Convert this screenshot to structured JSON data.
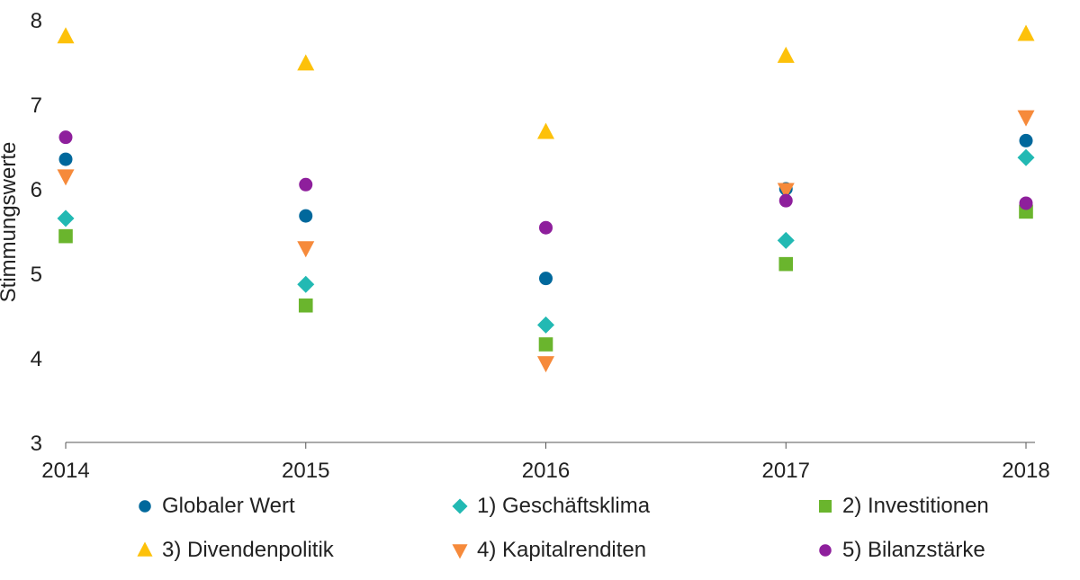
{
  "chart_data": {
    "type": "scatter",
    "title": "",
    "xlabel": "",
    "ylabel": "Stimmungswerte",
    "x": [
      "2014",
      "2015",
      "2016",
      "2017",
      "2018"
    ],
    "ylim": [
      3,
      8
    ],
    "yticks": [
      "3",
      "4",
      "5",
      "6",
      "7",
      "8"
    ],
    "grid": false,
    "legend_position": "bottom",
    "series": [
      {
        "name": "Globaler Wert",
        "marker": "circle",
        "color": "#00689c",
        "values": [
          6.35,
          5.68,
          4.94,
          6.0,
          6.57
        ]
      },
      {
        "name": "1) Geschäftsklima",
        "marker": "diamond",
        "color": "#22b9b3",
        "values": [
          5.65,
          4.87,
          4.39,
          5.39,
          6.37
        ]
      },
      {
        "name": "2) Investitionen",
        "marker": "square",
        "color": "#6ab52d",
        "values": [
          5.44,
          4.62,
          4.16,
          5.11,
          5.73
        ]
      },
      {
        "name": "3) Divendenpolitik",
        "marker": "triangle-up",
        "color": "#fdc10a",
        "values": [
          7.8,
          7.48,
          6.67,
          7.57,
          7.83
        ]
      },
      {
        "name": "4) Kapitalrenditen",
        "marker": "triangle-down",
        "color": "#f68a3b",
        "values": [
          6.15,
          5.3,
          3.94,
          5.99,
          6.85
        ]
      },
      {
        "name": "5) Bilanzstärke",
        "marker": "circle",
        "color": "#8e1f9c",
        "values": [
          6.61,
          6.05,
          5.54,
          5.86,
          5.83
        ]
      }
    ]
  }
}
